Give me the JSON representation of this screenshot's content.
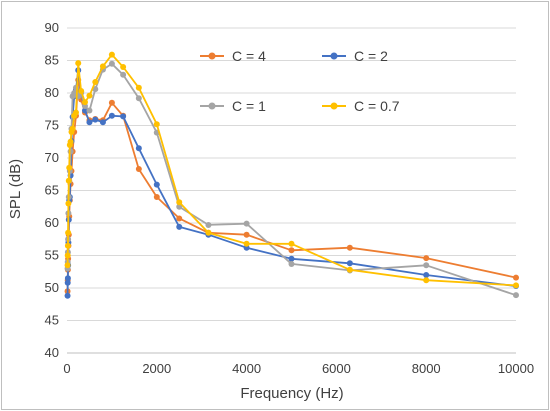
{
  "chart_data": {
    "type": "line",
    "title": "",
    "xlabel": "Frequency (Hz)",
    "ylabel": "SPL (dB)",
    "xlim": [
      0,
      10000
    ],
    "ylim": [
      40,
      90
    ],
    "xticks": [
      0,
      2000,
      4000,
      6000,
      8000,
      10000
    ],
    "yticks": [
      40,
      45,
      50,
      55,
      60,
      65,
      70,
      75,
      80,
      85,
      90
    ],
    "grid": "horizontal",
    "legend_position": "inside-upper-right",
    "series": [
      {
        "name": "C = 4",
        "color": "#ED7D31",
        "x": [
          12.5,
          16,
          20,
          25,
          31.5,
          40,
          50,
          63,
          80,
          100,
          125,
          160,
          200,
          250,
          315,
          400,
          500,
          630,
          800,
          1000,
          1250,
          1600,
          2000,
          2500,
          3150,
          4000,
          5000,
          6300,
          8000,
          10000
        ],
        "y": [
          49.5,
          51.2,
          52.8,
          54.5,
          56.5,
          58.2,
          61.0,
          63.5,
          66.0,
          68.0,
          71.0,
          74.0,
          76.5,
          82.0,
          79.0,
          77.0,
          75.8,
          76.0,
          75.8,
          78.5,
          76.5,
          68.3,
          64.0,
          60.7,
          58.5,
          58.2,
          55.8,
          56.2,
          54.6,
          51.6
        ]
      },
      {
        "name": "C = 2",
        "color": "#4472C4",
        "x": [
          12.5,
          16,
          20,
          25,
          31.5,
          40,
          50,
          63,
          80,
          100,
          125,
          160,
          200,
          250,
          315,
          400,
          500,
          630,
          800,
          1000,
          1250,
          1600,
          2000,
          2500,
          3150,
          4000,
          5000,
          6300,
          8000,
          10000
        ],
        "y": [
          48.8,
          50.8,
          51.5,
          53.5,
          57.0,
          60.5,
          63.5,
          64.0,
          67.3,
          72.6,
          76.3,
          79.5,
          80.5,
          83.5,
          80.2,
          77.3,
          75.5,
          75.9,
          75.5,
          76.5,
          76.4,
          71.5,
          65.9,
          59.4,
          58.2,
          56.2,
          54.5,
          53.8,
          52.0,
          50.3
        ]
      },
      {
        "name": "C = 1",
        "color": "#A5A5A5",
        "x": [
          12.5,
          16,
          20,
          25,
          31.5,
          40,
          50,
          63,
          80,
          100,
          125,
          160,
          200,
          250,
          315,
          400,
          500,
          630,
          800,
          1000,
          1250,
          1600,
          2000,
          2500,
          3150,
          4000,
          5000,
          6300,
          8000,
          10000
        ],
        "y": [
          53.0,
          54.0,
          55.5,
          57.5,
          61.5,
          64.0,
          66.5,
          68.0,
          71.0,
          74.5,
          79.5,
          80.0,
          80.8,
          79.5,
          80.0,
          78.0,
          77.3,
          80.6,
          83.6,
          84.5,
          82.8,
          79.2,
          73.9,
          62.5,
          59.7,
          59.9,
          53.7,
          52.7,
          53.5,
          48.9
        ]
      },
      {
        "name": "C = 0.7",
        "color": "#FFC000",
        "x": [
          12.5,
          16,
          20,
          25,
          31.5,
          40,
          50,
          63,
          80,
          100,
          125,
          160,
          200,
          250,
          315,
          400,
          500,
          630,
          800,
          1000,
          1250,
          1600,
          2000,
          2500,
          3150,
          4000,
          5000,
          6300,
          8000,
          10000
        ],
        "y": [
          53.5,
          55.0,
          56.5,
          58.5,
          63.0,
          66.5,
          68.5,
          72.0,
          72.5,
          74.0,
          74.5,
          76.5,
          77.0,
          84.6,
          80.3,
          78.6,
          79.6,
          81.7,
          84.1,
          85.9,
          84.0,
          80.8,
          75.2,
          63.2,
          58.5,
          56.8,
          56.8,
          52.8,
          51.2,
          50.4
        ]
      }
    ]
  }
}
